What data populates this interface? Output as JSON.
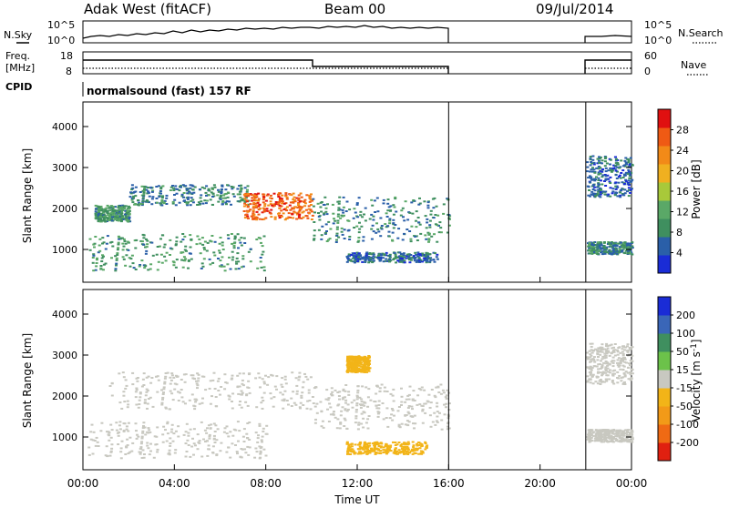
{
  "header": {
    "station": "Adak West (fitACF)",
    "beam": "Beam 00",
    "date": "09/Jul/2014"
  },
  "panel_labels": {
    "nsky": "N.Sky",
    "freq_line1": "Freq.",
    "freq_line2": "[MHz]",
    "cpid": "CPID",
    "nsearch": "N.Search",
    "nave": "Nave",
    "cpid_text": "normalsound (fast) 157 RF"
  },
  "noise_axis": {
    "left_ticks": [
      "10^5",
      "10^0"
    ],
    "right_ticks": [
      "10^5",
      "10^0"
    ]
  },
  "freq_axis": {
    "left_ticks": [
      "18",
      "8"
    ],
    "right_ticks": [
      "60",
      "0"
    ]
  },
  "colors": {
    "power_scale": [
      "#1a2cd6",
      "#2a5fa8",
      "#3f8f5f",
      "#5aa867",
      "#a8c93a",
      "#f0b020",
      "#f28a18",
      "#ef5a14",
      "#e01010"
    ],
    "velocity_scale": [
      "#1a2cd6",
      "#3a66b8",
      "#3f8f5f",
      "#6cc24a",
      "#c8c8c0",
      "#f2b418",
      "#f29a18",
      "#ef6a14",
      "#e02010"
    ],
    "ground_scatter": "#c8c8c0"
  },
  "chart_data": [
    {
      "type": "heatmap",
      "title": "Power",
      "xlabel": "Time UT",
      "ylabel": "Slant Range [km]",
      "x_ticks": [
        "00:00",
        "04:00",
        "08:00",
        "12:00",
        "16:00",
        "20:00",
        "00:00"
      ],
      "y_ticks": [
        1000,
        2000,
        3000,
        4000
      ],
      "ylim": [
        200,
        4600
      ],
      "xlim_hours": [
        0,
        24
      ],
      "colorbar": {
        "label": "Power [dB]",
        "ticks": [
          4,
          8,
          12,
          16,
          20,
          24,
          28
        ],
        "range": [
          0,
          32
        ]
      },
      "data_gaps_hours": [
        [
          16,
          22
        ]
      ],
      "echo_regions": [
        {
          "t_start": 0.5,
          "t_end": 2.0,
          "r_start": 1700,
          "r_end": 2100,
          "value": 10
        },
        {
          "t_start": 2.0,
          "t_end": 7.2,
          "r_start": 2100,
          "r_end": 2600,
          "value": 8
        },
        {
          "t_start": 7.0,
          "t_end": 10.0,
          "r_start": 1750,
          "r_end": 2400,
          "value": 26
        },
        {
          "t_start": 0.2,
          "t_end": 8.0,
          "r_start": 500,
          "r_end": 1400,
          "value": 10
        },
        {
          "t_start": 10.0,
          "t_end": 16.0,
          "r_start": 1200,
          "r_end": 2300,
          "value": 8
        },
        {
          "t_start": 11.5,
          "t_end": 15.5,
          "r_start": 700,
          "r_end": 950,
          "value": 6
        },
        {
          "t_start": 22.0,
          "t_end": 24.0,
          "r_start": 900,
          "r_end": 1200,
          "value": 8
        },
        {
          "t_start": 22.0,
          "t_end": 24.0,
          "r_start": 2300,
          "r_end": 3300,
          "value": 6
        }
      ]
    },
    {
      "type": "heatmap",
      "title": "Velocity",
      "xlabel": "Time UT",
      "ylabel": "Slant Range [km]",
      "x_ticks": [
        "00:00",
        "04:00",
        "08:00",
        "12:00",
        "16:00",
        "20:00",
        "00:00"
      ],
      "y_ticks": [
        1000,
        2000,
        3000,
        4000
      ],
      "ylim": [
        200,
        4600
      ],
      "xlim_hours": [
        0,
        24
      ],
      "colorbar": {
        "label": "Velocity [m s^-1]",
        "ticks": [
          200,
          100,
          50,
          15,
          -15,
          -50,
          -100,
          -200
        ],
        "range": [
          -250,
          250
        ]
      },
      "data_gaps_hours": [
        [
          16,
          22
        ]
      ],
      "echo_regions": [
        {
          "t_start": 1.0,
          "t_end": 10.0,
          "r_start": 1700,
          "r_end": 2600,
          "value": 0
        },
        {
          "t_start": 0.2,
          "t_end": 8.0,
          "r_start": 500,
          "r_end": 1400,
          "value": 0
        },
        {
          "t_start": 10.0,
          "t_end": 16.0,
          "r_start": 1200,
          "r_end": 2300,
          "value": 0
        },
        {
          "t_start": 11.5,
          "t_end": 15.0,
          "r_start": 600,
          "r_end": 900,
          "value": -60
        },
        {
          "t_start": 11.5,
          "t_end": 12.5,
          "r_start": 2600,
          "r_end": 3000,
          "value": -60
        },
        {
          "t_start": 22.0,
          "t_end": 24.0,
          "r_start": 900,
          "r_end": 1200,
          "value": 0
        },
        {
          "t_start": 22.0,
          "t_end": 24.0,
          "r_start": 2300,
          "r_end": 3300,
          "value": 0
        }
      ]
    }
  ]
}
